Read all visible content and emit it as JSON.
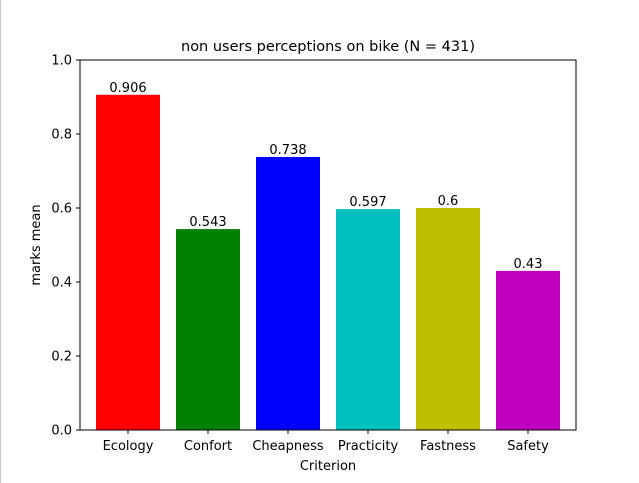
{
  "chart_data": {
    "type": "bar",
    "title": "non users perceptions on bike (N = 431)",
    "xlabel": "Criterion",
    "ylabel": "marks mean",
    "categories": [
      "Ecology",
      "Confort",
      "Cheapness",
      "Practicity",
      "Fastness",
      "Safety"
    ],
    "values": [
      0.906,
      0.543,
      0.738,
      0.597,
      0.6,
      0.43
    ],
    "value_labels": [
      "0.906",
      "0.543",
      "0.738",
      "0.597",
      "0.6",
      "0.43"
    ],
    "colors": [
      "#ff0000",
      "#008000",
      "#0000ff",
      "#00bfbf",
      "#bfbf00",
      "#bf00bf"
    ],
    "ylim": [
      0,
      1.0
    ],
    "yticks": [
      0.0,
      0.2,
      0.4,
      0.6,
      0.8,
      1.0
    ],
    "ytick_labels": [
      "0.0",
      "0.2",
      "0.4",
      "0.6",
      "0.8",
      "1.0"
    ],
    "grid": false,
    "legend": "none"
  }
}
